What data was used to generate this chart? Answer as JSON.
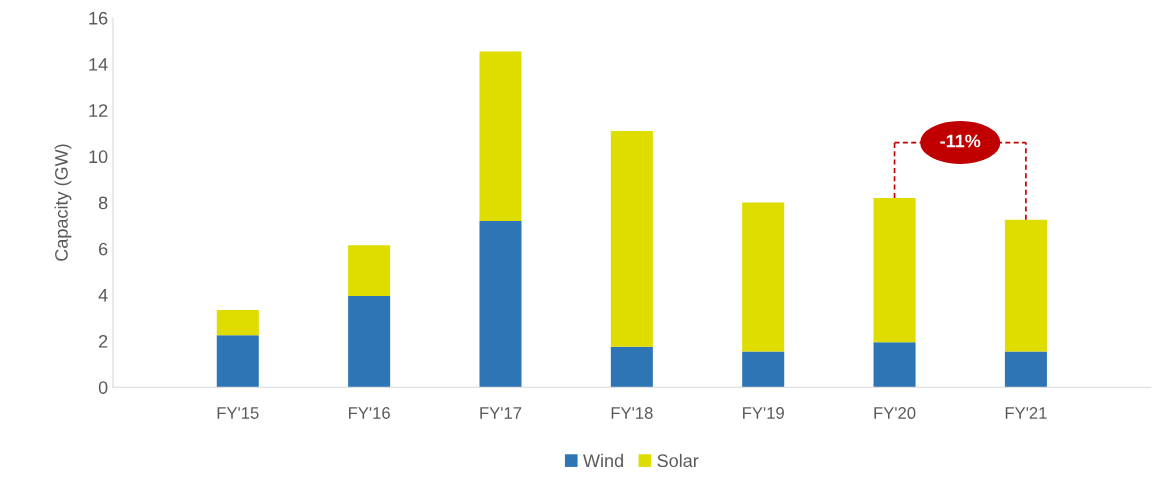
{
  "chart_data": {
    "type": "bar",
    "stacked": true,
    "ylabel": "Capacity (GW)",
    "categories": [
      "FY'15",
      "FY'16",
      "FY'17",
      "FY'18",
      "FY'19",
      "FY'20",
      "FY'21"
    ],
    "series": [
      {
        "name": "Wind",
        "color": "#2e75b6",
        "values": [
          2.25,
          3.95,
          7.2,
          1.75,
          1.55,
          1.95,
          1.55
        ]
      },
      {
        "name": "Solar",
        "color": "#dfdc00",
        "values": [
          1.1,
          2.2,
          7.35,
          9.35,
          6.45,
          6.25,
          5.7
        ]
      }
    ],
    "ylim": [
      0,
      16
    ],
    "yticks": [
      0,
      2,
      4,
      6,
      8,
      10,
      12,
      14,
      16
    ],
    "grid": false,
    "legend": "bottom",
    "annotations": [
      "-11%"
    ]
  }
}
